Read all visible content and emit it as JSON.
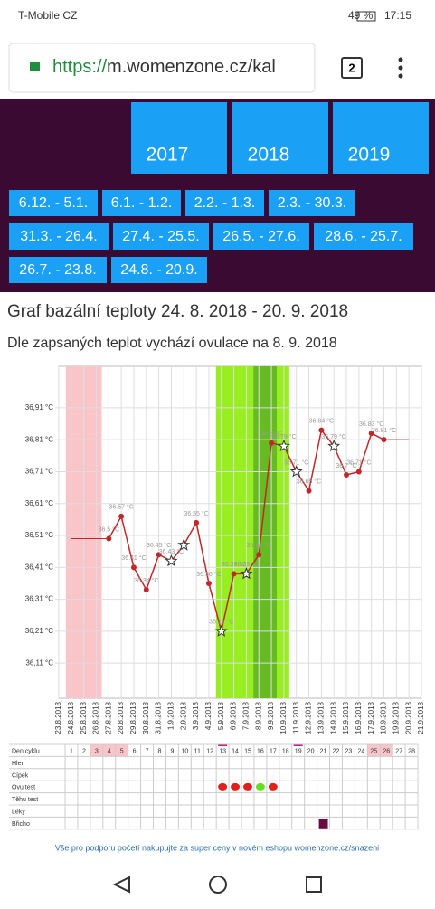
{
  "status_bar": {
    "carrier": "T-Mobile CZ",
    "battery": "49 %",
    "time": "17:15"
  },
  "browser": {
    "url_scheme": "https://",
    "url_rest": "m.womenzone.cz/kal",
    "tabs": "2"
  },
  "years": [
    "2017",
    "2018",
    "2019"
  ],
  "ranges": [
    "6.12. - 5.1.",
    "6.1. - 1.2.",
    "2.2. - 1.3.",
    "2.3. - 30.3.",
    "31.3. - 26.4.",
    "27.4. - 25.5.",
    "26.5. - 27.6.",
    "28.6. - 25.7.",
    "26.7. - 23.8.",
    "24.8. - 20.9."
  ],
  "heading": "Graf bazální teploty 24. 8. 2018 - 20. 9. 2018",
  "subheading": "Dle zapsaných teplot vychází ovulace na 8. 9. 2018",
  "chart_data": {
    "type": "line",
    "categories": [
      "23.8.2018",
      "24.8.2018",
      "25.8.2018",
      "26.8.2018",
      "27.8.2018",
      "28.8.2018",
      "29.8.2018",
      "30.8.2018",
      "31.8.2018",
      "1.9.2018",
      "2.9.2018",
      "3.9.2018",
      "4.9.2018",
      "5.9.2018",
      "6.9.2018",
      "7.9.2018",
      "8.9.2018",
      "9.9.2018",
      "10.9.2018",
      "11.9.2018",
      "12.9.2018",
      "13.9.2018",
      "14.9.2018",
      "15.9.2018",
      "16.9.2018",
      "17.9.2018",
      "18.9.2018",
      "19.9.2018",
      "20.9.2018",
      "21.9.2018"
    ],
    "series": [
      {
        "color": "#c0282a",
        "values": [
          null,
          null,
          null,
          null,
          36.5,
          36.57,
          36.41,
          36.34,
          36.45,
          36.43,
          36.48,
          36.55,
          36.36,
          36.21,
          36.39,
          36.39,
          36.45,
          36.8,
          36.79,
          36.71,
          36.65,
          36.84,
          36.79,
          36.7,
          36.71,
          36.83,
          36.81,
          null,
          null,
          null
        ],
        "value_labels": [
          null,
          null,
          null,
          null,
          "36.5 °C",
          "36.57 °C",
          "36.41 °C",
          "36.34 °C",
          "36.45 °C",
          "36.43 °C",
          null,
          "36.55 °C",
          "36.36 °C",
          "36.21 °C",
          "36.39 °C",
          "36.39 °C",
          "36.45 °C",
          "36.8 °C",
          "36.79 °C",
          "36.71 °C",
          "36.65 °C",
          "36.84 °C",
          "36.79 °C",
          "36.7 °C",
          "36.71 °C",
          "36.83 °C",
          "36.81 °C",
          null,
          null,
          null
        ],
        "markers": [
          null,
          null,
          null,
          null,
          "dot",
          "dot",
          "dot",
          "dot",
          "dot",
          "star",
          "star",
          "dot",
          "dot",
          "star",
          "dot",
          "star",
          "dot",
          "dot",
          "star",
          "star",
          "dot",
          "dot",
          "star",
          "dot",
          "dot",
          "dot",
          "dot",
          null,
          null,
          null
        ]
      }
    ],
    "ylim": [
      36.0,
      37.04
    ],
    "yticks": [
      {
        "value": 36.11,
        "label": "36,11 °C"
      },
      {
        "value": 36.21,
        "label": "36,21 °C"
      },
      {
        "value": 36.31,
        "label": "36,31 °C"
      },
      {
        "value": 36.41,
        "label": "36,41 °C"
      },
      {
        "value": 36.51,
        "label": "36,51 °C"
      },
      {
        "value": 36.61,
        "label": "36,61 °C"
      },
      {
        "value": 36.71,
        "label": "36,71 °C"
      },
      {
        "value": 36.81,
        "label": "36,81 °C"
      },
      {
        "value": 36.91,
        "label": "36,91 °C"
      }
    ],
    "grid": true,
    "bands": [
      {
        "start": 1,
        "end": 3,
        "color": "#f9c5c8"
      },
      {
        "start": 13,
        "end": 18,
        "color": "#99ee22"
      },
      {
        "start": 16,
        "end": 17,
        "color": "#66bb22"
      }
    ]
  },
  "cycle_table": {
    "header": "Den cyklu",
    "days": [
      1,
      2,
      3,
      4,
      5,
      6,
      7,
      8,
      9,
      10,
      11,
      12,
      13,
      14,
      15,
      16,
      17,
      18,
      19,
      20,
      21,
      22,
      23,
      24,
      25,
      26,
      27,
      28
    ],
    "rows": [
      "Hlen",
      "Čípek",
      "Ovu test",
      "Těhu test",
      "Léky",
      "Břicho"
    ],
    "ovu_test": [
      {
        "day": 13,
        "color": "#e0201c"
      },
      {
        "day": 14,
        "color": "#e0201c"
      },
      {
        "day": 15,
        "color": "#e0201c"
      },
      {
        "day": 16,
        "color": "#66dd22"
      },
      {
        "day": 17,
        "color": "#e0201c"
      }
    ],
    "bricho": [
      21
    ]
  },
  "footer": "Vše pro podporu početí nakupujte za super ceny v novém eshopu womenzone.cz/snazeni"
}
